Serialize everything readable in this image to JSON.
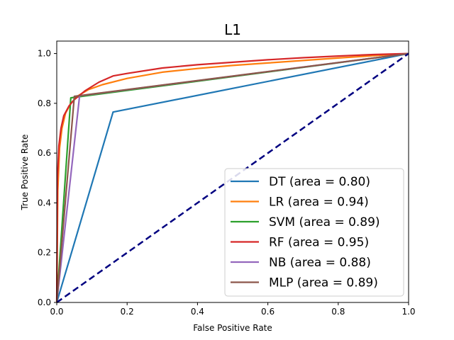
{
  "chart_data": {
    "type": "line",
    "title": "L1",
    "xlabel": "False Positive Rate",
    "ylabel": "True Positive Rate",
    "xlim": [
      0,
      1
    ],
    "ylim": [
      0,
      1.05
    ],
    "xticks": [
      0.0,
      0.2,
      0.4,
      0.6,
      0.8,
      1.0
    ],
    "yticks": [
      0.0,
      0.2,
      0.4,
      0.6,
      0.8,
      1.0
    ],
    "xtick_labels": [
      "0.0",
      "0.2",
      "0.4",
      "0.6",
      "0.8",
      "1.0"
    ],
    "ytick_labels": [
      "0.0",
      "0.2",
      "0.4",
      "0.6",
      "0.8",
      "1.0"
    ],
    "grid": false,
    "legend_position": "lower-right",
    "series": [
      {
        "name": "DT (area = 0.80)",
        "color": "#1f77b4",
        "points": [
          [
            0,
            0
          ],
          [
            0.16,
            0.765
          ],
          [
            1,
            1
          ]
        ]
      },
      {
        "name": "LR (area = 0.94)",
        "color": "#ff7f0e",
        "points": [
          [
            0,
            0
          ],
          [
            0.003,
            0.45
          ],
          [
            0.008,
            0.62
          ],
          [
            0.015,
            0.7
          ],
          [
            0.025,
            0.76
          ],
          [
            0.04,
            0.8
          ],
          [
            0.06,
            0.83
          ],
          [
            0.09,
            0.855
          ],
          [
            0.13,
            0.875
          ],
          [
            0.2,
            0.9
          ],
          [
            0.3,
            0.925
          ],
          [
            0.4,
            0.94
          ],
          [
            0.5,
            0.952
          ],
          [
            0.6,
            0.962
          ],
          [
            0.7,
            0.972
          ],
          [
            0.8,
            0.982
          ],
          [
            0.9,
            0.991
          ],
          [
            1,
            1
          ]
        ]
      },
      {
        "name": "SVM (area = 0.89)",
        "color": "#2ca02c",
        "points": [
          [
            0,
            0
          ],
          [
            0.04,
            0.822
          ],
          [
            1,
            1
          ]
        ]
      },
      {
        "name": "RF (area = 0.95)",
        "color": "#d62728",
        "points": [
          [
            0,
            0
          ],
          [
            0.002,
            0.5
          ],
          [
            0.006,
            0.63
          ],
          [
            0.012,
            0.7
          ],
          [
            0.02,
            0.75
          ],
          [
            0.035,
            0.79
          ],
          [
            0.05,
            0.815
          ],
          [
            0.08,
            0.85
          ],
          [
            0.12,
            0.885
          ],
          [
            0.16,
            0.91
          ],
          [
            0.2,
            0.92
          ],
          [
            0.3,
            0.942
          ],
          [
            0.4,
            0.955
          ],
          [
            0.5,
            0.965
          ],
          [
            0.6,
            0.975
          ],
          [
            0.7,
            0.983
          ],
          [
            0.8,
            0.99
          ],
          [
            0.9,
            0.996
          ],
          [
            1,
            1
          ]
        ]
      },
      {
        "name": "NB (area = 0.88)",
        "color": "#9467bd",
        "points": [
          [
            0,
            0
          ],
          [
            0.065,
            0.83
          ],
          [
            1,
            1
          ]
        ]
      },
      {
        "name": "MLP (area = 0.89)",
        "color": "#8c564b",
        "points": [
          [
            0,
            0
          ],
          [
            0.05,
            0.828
          ],
          [
            1,
            1
          ]
        ]
      }
    ],
    "reference_line": {
      "color": "#000080",
      "style": "dashed",
      "points": [
        [
          0,
          0
        ],
        [
          1,
          1
        ]
      ]
    }
  }
}
